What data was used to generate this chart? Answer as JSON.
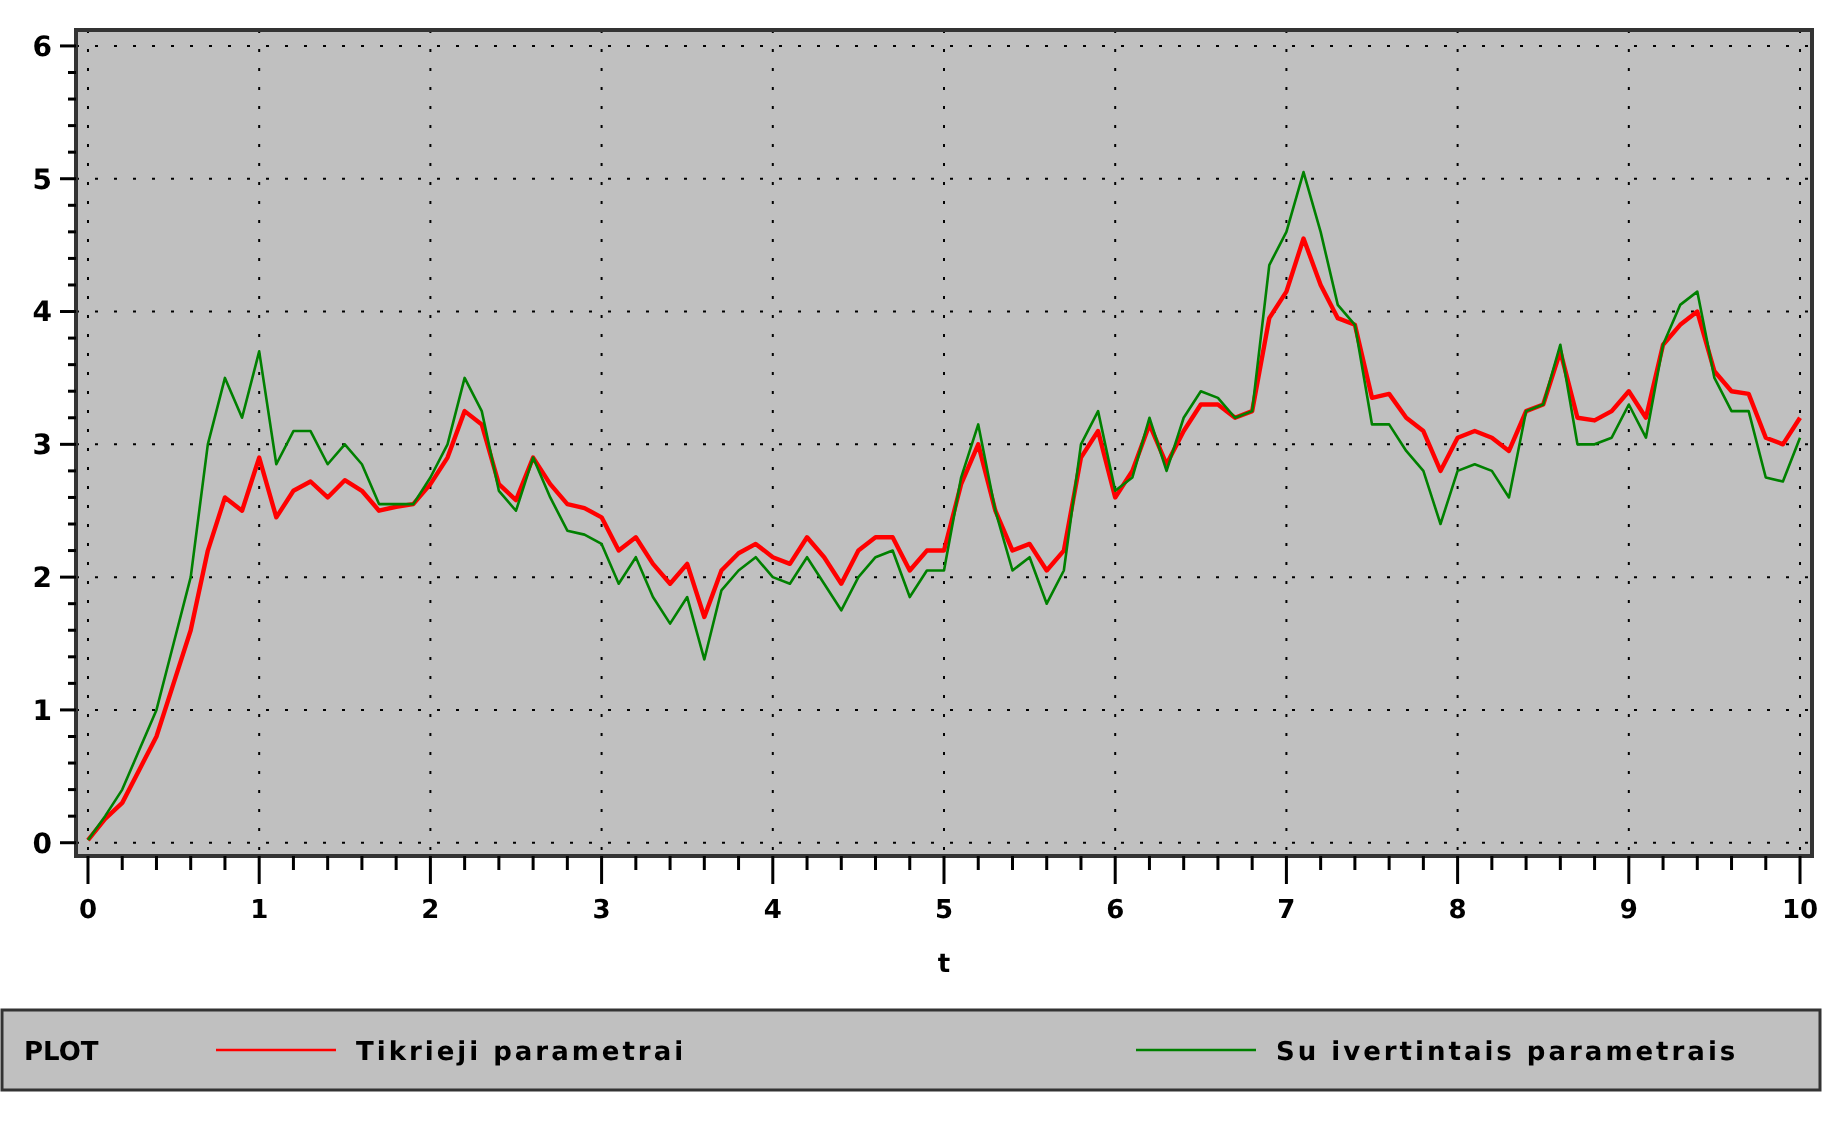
{
  "chart_data": {
    "type": "line",
    "xlabel": "t",
    "legend_title": "PLOT",
    "legend": "bottom",
    "grid": true,
    "xlim": [
      -0.07,
      10.07
    ],
    "ylim": [
      -0.1,
      6.12
    ],
    "xticks": [
      0,
      {
        "value": 0.2,
        "label": null
      },
      {
        "value": 0.4,
        "label": null
      },
      {
        "value": 0.6,
        "label": null
      },
      {
        "value": 0.8,
        "label": null
      },
      1,
      {
        "value": 1.2,
        "label": null
      },
      {
        "value": 1.4,
        "label": null
      },
      {
        "value": 1.6,
        "label": null
      },
      {
        "value": 1.8,
        "label": null
      },
      2,
      {
        "value": 2.2,
        "label": null
      },
      {
        "value": 2.4,
        "label": null
      },
      {
        "value": 2.6,
        "label": null
      },
      {
        "value": 2.8,
        "label": null
      },
      3,
      {
        "value": 3.2,
        "label": null
      },
      {
        "value": 3.4,
        "label": null
      },
      {
        "value": 3.6,
        "label": null
      },
      {
        "value": 3.8,
        "label": null
      },
      4,
      {
        "value": 4.2,
        "label": null
      },
      {
        "value": 4.4,
        "label": null
      },
      {
        "value": 4.6,
        "label": null
      },
      {
        "value": 4.8,
        "label": null
      },
      5,
      {
        "value": 5.2,
        "label": null
      },
      {
        "value": 5.4,
        "label": null
      },
      {
        "value": 5.6,
        "label": null
      },
      {
        "value": 5.8,
        "label": null
      },
      6,
      {
        "value": 6.2,
        "label": null
      },
      {
        "value": 6.4,
        "label": null
      },
      {
        "value": 6.6,
        "label": null
      },
      {
        "value": 6.8,
        "label": null
      },
      7,
      {
        "value": 7.2,
        "label": null
      },
      {
        "value": 7.4,
        "label": null
      },
      {
        "value": 7.6,
        "label": null
      },
      {
        "value": 7.8,
        "label": null
      },
      8,
      {
        "value": 8.2,
        "label": null
      },
      {
        "value": 8.4,
        "label": null
      },
      {
        "value": 8.6,
        "label": null
      },
      {
        "value": 8.8,
        "label": null
      },
      9,
      {
        "value": 9.2,
        "label": null
      },
      {
        "value": 9.4,
        "label": null
      },
      {
        "value": 9.6,
        "label": null
      },
      {
        "value": 9.8,
        "label": null
      },
      10
    ],
    "yticks": [
      0,
      {
        "value": 0.2,
        "label": null
      },
      {
        "value": 0.4,
        "label": null
      },
      {
        "value": 0.6,
        "label": null
      },
      {
        "value": 0.8,
        "label": null
      },
      1,
      {
        "value": 1.2,
        "label": null
      },
      {
        "value": 1.4,
        "label": null
      },
      {
        "value": 1.6,
        "label": null
      },
      {
        "value": 1.8,
        "label": null
      },
      2,
      {
        "value": 2.2,
        "label": null
      },
      {
        "value": 2.4,
        "label": null
      },
      {
        "value": 2.6,
        "label": null
      },
      {
        "value": 2.8,
        "label": null
      },
      3,
      {
        "value": 3.2,
        "label": null
      },
      {
        "value": 3.4,
        "label": null
      },
      {
        "value": 3.6,
        "label": null
      },
      {
        "value": 3.8,
        "label": null
      },
      4,
      {
        "value": 4.2,
        "label": null
      },
      {
        "value": 4.4,
        "label": null
      },
      {
        "value": 4.6,
        "label": null
      },
      {
        "value": 4.8,
        "label": null
      },
      5,
      {
        "value": 5.2,
        "label": null
      },
      {
        "value": 5.4,
        "label": null
      },
      {
        "value": 5.6,
        "label": null
      },
      {
        "value": 5.8,
        "label": null
      },
      6
    ],
    "x": [
      0,
      0.1,
      0.2,
      0.3,
      0.4,
      0.5,
      0.6,
      0.7,
      0.8,
      0.9,
      1,
      1.1,
      1.2,
      1.3,
      1.4,
      1.5,
      1.6,
      1.7,
      1.8,
      1.9,
      2,
      2.1,
      2.2,
      2.3,
      2.4,
      2.5,
      2.6,
      2.7,
      2.8,
      2.9,
      3,
      3.1,
      3.2,
      3.3,
      3.4,
      3.5,
      3.6,
      3.7,
      3.8,
      3.9,
      4,
      4.1,
      4.2,
      4.3,
      4.4,
      4.5,
      4.6,
      4.7,
      4.8,
      4.9,
      5,
      5.1,
      5.2,
      5.3,
      5.4,
      5.5,
      5.6,
      5.7,
      5.8,
      5.9,
      6,
      6.1,
      6.2,
      6.3,
      6.4,
      6.5,
      6.6,
      6.7,
      6.8,
      6.9,
      7,
      7.1,
      7.2,
      7.3,
      7.4,
      7.5,
      7.6,
      7.7,
      7.8,
      7.9,
      8,
      8.1,
      8.2,
      8.3,
      8.4,
      8.5,
      8.6,
      8.7,
      8.8,
      8.9,
      9,
      9.1,
      9.2,
      9.3,
      9.4,
      9.5,
      9.6,
      9.7,
      9.8,
      9.9,
      10
    ],
    "series": [
      {
        "name": "Tikrieji parametrai",
        "color": "#ff0000",
        "values": [
          0.02,
          0.18,
          0.3,
          0.55,
          0.8,
          1.2,
          1.6,
          2.2,
          2.6,
          2.5,
          2.9,
          2.45,
          2.65,
          2.72,
          2.6,
          2.73,
          2.65,
          2.5,
          2.53,
          2.55,
          2.7,
          2.9,
          3.25,
          3.15,
          2.7,
          2.58,
          2.9,
          2.7,
          2.55,
          2.52,
          2.45,
          2.2,
          2.3,
          2.1,
          1.95,
          2.1,
          1.7,
          2.05,
          2.18,
          2.25,
          2.15,
          2.1,
          2.3,
          2.15,
          1.95,
          2.2,
          2.3,
          2.3,
          2.05,
          2.2,
          2.2,
          2.7,
          3.0,
          2.5,
          2.2,
          2.25,
          2.05,
          2.2,
          2.9,
          3.1,
          2.6,
          2.8,
          3.15,
          2.85,
          3.1,
          3.3,
          3.3,
          3.2,
          3.25,
          3.95,
          4.15,
          4.55,
          4.2,
          3.95,
          3.9,
          3.35,
          3.38,
          3.2,
          3.1,
          2.8,
          3.05,
          3.1,
          3.05,
          2.95,
          3.25,
          3.3,
          3.7,
          3.2,
          3.18,
          3.25,
          3.4,
          3.2,
          3.75,
          3.9,
          4.0,
          3.55,
          3.4,
          3.38,
          3.05,
          3.0,
          3.2
        ]
      },
      {
        "name": "Su ivertintais parametrais",
        "color": "#008000",
        "values": [
          0.02,
          0.2,
          0.4,
          0.7,
          1.0,
          1.5,
          2.0,
          3.0,
          3.5,
          3.2,
          3.7,
          2.85,
          3.1,
          3.1,
          2.85,
          3.0,
          2.85,
          2.55,
          2.55,
          2.55,
          2.75,
          3.0,
          3.5,
          3.25,
          2.65,
          2.5,
          2.9,
          2.6,
          2.35,
          2.32,
          2.25,
          1.95,
          2.15,
          1.85,
          1.65,
          1.85,
          1.38,
          1.9,
          2.05,
          2.15,
          2.0,
          1.95,
          2.15,
          1.95,
          1.75,
          2.0,
          2.15,
          2.2,
          1.85,
          2.05,
          2.05,
          2.75,
          3.15,
          2.5,
          2.05,
          2.15,
          1.8,
          2.05,
          3.0,
          3.25,
          2.65,
          2.75,
          3.2,
          2.8,
          3.2,
          3.4,
          3.35,
          3.2,
          3.25,
          4.35,
          4.6,
          5.05,
          4.6,
          4.05,
          3.9,
          3.15,
          3.15,
          2.95,
          2.8,
          2.4,
          2.8,
          2.85,
          2.8,
          2.6,
          3.25,
          3.3,
          3.75,
          3.0,
          3.0,
          3.05,
          3.3,
          3.05,
          3.75,
          4.05,
          4.15,
          3.5,
          3.25,
          3.25,
          2.75,
          2.72,
          3.05
        ]
      }
    ]
  }
}
